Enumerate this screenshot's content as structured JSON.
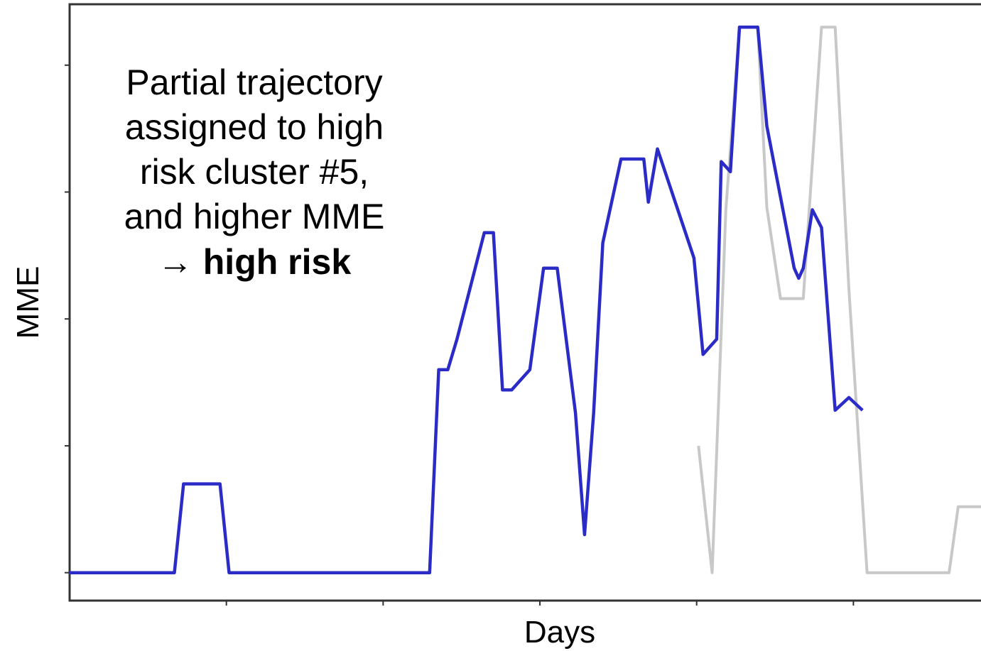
{
  "chart_data": {
    "type": "line",
    "title": "",
    "xlabel": "Days",
    "ylabel": "MME",
    "x_tick_labels": [],
    "y_tick_labels": [],
    "xlim": [
      0,
      100
    ],
    "ylim": [
      -0.55,
      11.2
    ],
    "grid": false,
    "legend": "none",
    "annotation": {
      "lines": [
        "Partial trajectory",
        "assigned to high",
        "risk cluster #5,",
        "and higher MME"
      ],
      "arrow": "→",
      "conclusion": "high risk"
    },
    "series": [
      {
        "role": "observed",
        "color": "#2b2bc8",
        "x": [
          0,
          11.5,
          12.5,
          16.5,
          17.5,
          39.5,
          40.5,
          41.5,
          42.5,
          45.5,
          46.5,
          47.5,
          48.5,
          50.5,
          52,
          53.5,
          55.5,
          56.5,
          57.5,
          58.5,
          60.5,
          63,
          63.5,
          64.5,
          68.5,
          69.5,
          71,
          71.5,
          72.5,
          73.5,
          75.5,
          76.5,
          79.5,
          80,
          80.5,
          81.5,
          82.5,
          84,
          85.5,
          87
        ],
        "y": [
          0,
          0,
          1.75,
          1.75,
          0,
          0,
          4.0,
          4.0,
          4.6,
          6.7,
          6.7,
          3.6,
          3.6,
          4.0,
          6.0,
          6.0,
          3.15,
          0.75,
          3.15,
          6.5,
          8.15,
          8.15,
          7.3,
          8.35,
          6.2,
          4.3,
          4.6,
          8.1,
          7.9,
          10.75,
          10.75,
          8.8,
          6.0,
          5.8,
          6.0,
          7.15,
          6.8,
          3.2,
          3.45,
          3.2
        ]
      },
      {
        "role": "future",
        "color": "#c8c8c8",
        "x": [
          69,
          70.5,
          72,
          73.5,
          75.5,
          76.5,
          78,
          80.5,
          82.5,
          84,
          85.5,
          87.5,
          90.5,
          92,
          93.5,
          96.5,
          97.5,
          100
        ],
        "y": [
          2.5,
          0,
          7.15,
          10.75,
          10.75,
          7.2,
          5.4,
          5.4,
          10.75,
          10.75,
          5.6,
          0,
          0,
          0,
          0,
          0,
          1.3,
          1.3
        ]
      }
    ]
  }
}
